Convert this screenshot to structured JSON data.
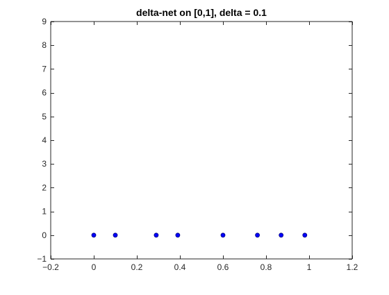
{
  "chart_data": {
    "type": "scatter",
    "title": "delta-net on [0,1], delta = 0.1",
    "xlabel": "",
    "ylabel": "",
    "xlim": [
      -0.2,
      1.2
    ],
    "ylim": [
      -1,
      9
    ],
    "x_ticks": [
      -0.2,
      0,
      0.2,
      0.4,
      0.6,
      0.8,
      1,
      1.2
    ],
    "x_tick_labels": [
      "−0.2",
      "0",
      "0.2",
      "0.4",
      "0.6",
      "0.8",
      "1",
      "1.2"
    ],
    "y_ticks": [
      -1,
      0,
      1,
      2,
      3,
      4,
      5,
      6,
      7,
      8,
      9
    ],
    "y_tick_labels": [
      "−1",
      "0",
      "1",
      "2",
      "3",
      "4",
      "5",
      "6",
      "7",
      "8",
      "9"
    ],
    "grid": false,
    "series": [
      {
        "color": "#0000ff",
        "marker": "circle",
        "x": [
          0.0,
          0.1,
          0.29,
          0.39,
          0.6,
          0.76,
          0.87,
          0.98
        ],
        "y": [
          0,
          0,
          0,
          0,
          0,
          0,
          0,
          0
        ]
      }
    ]
  }
}
